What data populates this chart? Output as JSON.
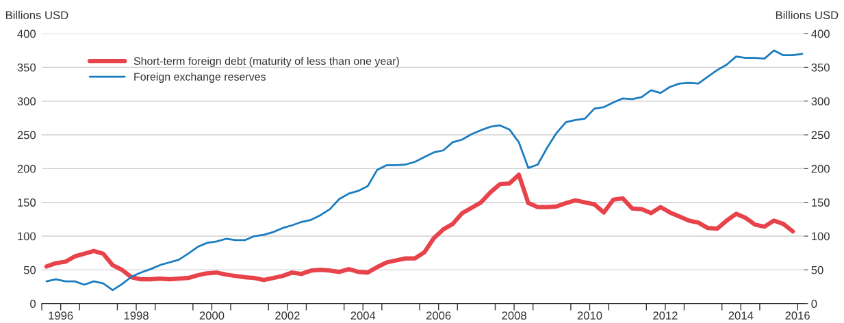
{
  "chart_data": {
    "type": "line",
    "ylabel": "Billions USD",
    "y2label": "Billions USD",
    "xlim": [
      1996,
      2016.18
    ],
    "xticks": [
      {
        "value": 1996,
        "label": null
      },
      {
        "value": 1996.5,
        "label": "1996"
      },
      {
        "value": 1997,
        "label": null
      },
      {
        "value": 1998,
        "label": null
      },
      {
        "value": 1998.5,
        "label": "1998"
      },
      {
        "value": 1999,
        "label": null
      },
      {
        "value": 2000,
        "label": null
      },
      {
        "value": 2000.5,
        "label": "2000"
      },
      {
        "value": 2001,
        "label": null
      },
      {
        "value": 2002,
        "label": null
      },
      {
        "value": 2002.5,
        "label": "2002"
      },
      {
        "value": 2003,
        "label": null
      },
      {
        "value": 2004,
        "label": null
      },
      {
        "value": 2004.5,
        "label": "2004"
      },
      {
        "value": 2005,
        "label": null
      },
      {
        "value": 2006,
        "label": null
      },
      {
        "value": 2006.5,
        "label": "2006"
      },
      {
        "value": 2007,
        "label": null
      },
      {
        "value": 2008,
        "label": null
      },
      {
        "value": 2008.5,
        "label": "2008"
      },
      {
        "value": 2009,
        "label": null
      },
      {
        "value": 2010,
        "label": null
      },
      {
        "value": 2010.5,
        "label": "2010"
      },
      {
        "value": 2011,
        "label": null
      },
      {
        "value": 2012,
        "label": null
      },
      {
        "value": 2012.5,
        "label": "2012"
      },
      {
        "value": 2013,
        "label": null
      },
      {
        "value": 2014,
        "label": null
      },
      {
        "value": 2014.5,
        "label": "2014"
      },
      {
        "value": 2015,
        "label": null
      },
      {
        "value": 2016,
        "label": "2016"
      }
    ],
    "ylim": [
      0,
      400
    ],
    "yticks": [
      0,
      50,
      100,
      150,
      200,
      250,
      300,
      350,
      400
    ],
    "y2lim": [
      0,
      400
    ],
    "y2ticks": [
      0,
      50,
      100,
      150,
      200,
      250,
      300,
      350,
      400
    ],
    "grid": "y",
    "legend": "top left",
    "line_style": "solid",
    "series": [
      {
        "name": "Short-term foreign debt (maturity of less than one year)",
        "color": "#e8424a",
        "x": [
          1996.125,
          1996.375,
          1996.625,
          1996.875,
          1997.125,
          1997.375,
          1997.625,
          1997.875,
          1998.125,
          1998.375,
          1998.625,
          1998.875,
          1999.125,
          1999.375,
          1999.625,
          1999.875,
          2000.125,
          2000.375,
          2000.625,
          2000.875,
          2001.125,
          2001.375,
          2001.625,
          2001.875,
          2002.125,
          2002.375,
          2002.625,
          2002.875,
          2003.125,
          2003.375,
          2003.625,
          2003.875,
          2004.125,
          2004.375,
          2004.625,
          2004.875,
          2005.125,
          2005.375,
          2005.625,
          2005.875,
          2006.125,
          2006.375,
          2006.625,
          2006.875,
          2007.125,
          2007.375,
          2007.625,
          2007.875,
          2008.125,
          2008.375,
          2008.625,
          2008.875,
          2009.125,
          2009.375,
          2009.625,
          2009.875,
          2010.125,
          2010.375,
          2010.625,
          2010.875,
          2011.125,
          2011.375,
          2011.625,
          2011.875,
          2012.125,
          2012.375,
          2012.625,
          2012.875,
          2013.125,
          2013.375,
          2013.625,
          2013.875,
          2014.125,
          2014.375,
          2014.625,
          2014.875,
          2015.125,
          2015.375,
          2015.625,
          2015.875
        ],
        "values": [
          55,
          60,
          62,
          70,
          74,
          78,
          74,
          57,
          50,
          39,
          36,
          36,
          37,
          36,
          37,
          38,
          42,
          45,
          46,
          43,
          41,
          39,
          38,
          35,
          38,
          41,
          46,
          44,
          49,
          50,
          49,
          47,
          51,
          47,
          46,
          54,
          61,
          64,
          67,
          67,
          76,
          97,
          110,
          118,
          134,
          142,
          150,
          165,
          177,
          178,
          191,
          149,
          143,
          143,
          144,
          149,
          153,
          150,
          147,
          135,
          154,
          156,
          141,
          140,
          134,
          143,
          135,
          129,
          123,
          120,
          112,
          111,
          123,
          133,
          127,
          117,
          114,
          123,
          118,
          107
        ]
      },
      {
        "name": "Foreign exchange reserves",
        "color": "#1a7dc0",
        "x": [
          1996.125,
          1996.375,
          1996.625,
          1996.875,
          1997.125,
          1997.375,
          1997.625,
          1997.875,
          1998.125,
          1998.375,
          1998.625,
          1998.875,
          1999.125,
          1999.375,
          1999.625,
          1999.875,
          2000.125,
          2000.375,
          2000.625,
          2000.875,
          2001.125,
          2001.375,
          2001.625,
          2001.875,
          2002.125,
          2002.375,
          2002.625,
          2002.875,
          2003.125,
          2003.375,
          2003.625,
          2003.875,
          2004.125,
          2004.375,
          2004.625,
          2004.875,
          2005.125,
          2005.375,
          2005.625,
          2005.875,
          2006.125,
          2006.375,
          2006.625,
          2006.875,
          2007.125,
          2007.375,
          2007.625,
          2007.875,
          2008.125,
          2008.375,
          2008.625,
          2008.875,
          2009.125,
          2009.375,
          2009.625,
          2009.875,
          2010.125,
          2010.375,
          2010.625,
          2010.875,
          2011.125,
          2011.375,
          2011.625,
          2011.875,
          2012.125,
          2012.375,
          2012.625,
          2012.875,
          2013.125,
          2013.375,
          2013.625,
          2013.875,
          2014.125,
          2014.375,
          2014.625,
          2014.875,
          2015.125,
          2015.375,
          2015.625,
          2015.875,
          2016.125
        ],
        "values": [
          33,
          36,
          33,
          33,
          28,
          33,
          30,
          20,
          29,
          40,
          46,
          51,
          57,
          61,
          65,
          74,
          84,
          90,
          92,
          96,
          94,
          94,
          100,
          102,
          106,
          112,
          116,
          121,
          124,
          131,
          140,
          155,
          163,
          167,
          174,
          198,
          205,
          205,
          206,
          210,
          217,
          224,
          227,
          239,
          243,
          251,
          257,
          262,
          264,
          258,
          239,
          201,
          206,
          231,
          253,
          269,
          272,
          274,
          289,
          291,
          298,
          304,
          303,
          306,
          316,
          312,
          321,
          326,
          327,
          326,
          336,
          346,
          354,
          366,
          364,
          364,
          363,
          375,
          368,
          368,
          370
        ]
      }
    ]
  }
}
